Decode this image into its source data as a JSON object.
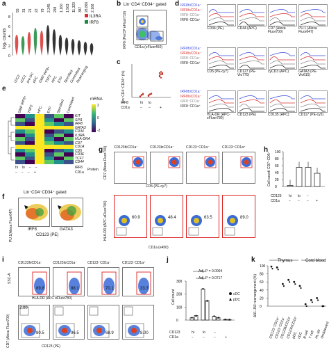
{
  "panels": {
    "a": {
      "label": "a",
      "ylabel": "log₂ counts",
      "counts": [
        "55",
        "31",
        "21",
        "22",
        "79",
        "2,345",
        "298",
        "1,160",
        "1,563",
        "11,323",
        "387",
        "28,866",
        "2,166"
      ],
      "legend": [
        "IL3RA",
        "IRF8"
      ],
      "legend_colors": [
        "#d83030",
        "#1b8a3a"
      ],
      "groups": [
        "cDC2",
        "cDC1",
        "pre-DC",
        "pDC",
        "GMP IRF8+",
        "TSP2",
        "HPC",
        "ETP",
        "Specified",
        "Committed",
        "Rearranging",
        "",
        ""
      ],
      "yticks": [
        "0",
        "2",
        "4",
        "6",
        "8"
      ]
    },
    "b": {
      "label": "b",
      "title": "Lin⁻CD4⁻CD34⁺ gated",
      "ylabel": "IRF8 (PerCP eFluor710)",
      "xlabel": "CD1a (eFluor450)"
    },
    "c": {
      "label": "c",
      "ylabel": "Lin⁻CD4⁻CD34⁺ (%)",
      "row1_label": "IRF8",
      "row2_label": "CD1a",
      "row1": [
        "hi",
        "lo",
        ""
      ],
      "row2": [
        "−",
        "−",
        "+"
      ]
    },
    "d": {
      "label": "d",
      "legend": [
        "IRF8hiCD1a⁻",
        "IRF8loCD1a⁻",
        "IRF8⁻CD1a⁻",
        "IRF8⁻CD1a⁺"
      ],
      "legend_colors": [
        "#3b4bd8",
        "#d83030",
        "#888888",
        "#222222"
      ],
      "row1": [
        "CD34 (PE)",
        "CD44 (APC)",
        "CD7 (Alexa Fluor700)",
        "PU.1 (Alexa Fluor647)"
      ],
      "row2": [
        "CD5 (PE-cy7)",
        "CD127 (PE-Vio770)",
        "cyCD3 (APC)",
        "GATA3 (PE-Vio615)"
      ],
      "row3": [
        "HLA-DR (APC-eFluor780)",
        "CD123 (PE)",
        "CD135 (APC)",
        "CD117 (PE-cy5)"
      ]
    },
    "e": {
      "label": "e",
      "columns": [
        "GMP IRF8+",
        "TSP2",
        "HPC",
        "ETP",
        "Specified",
        "Committed"
      ],
      "rows": [
        "KIT",
        "SPI1",
        "IRF8",
        "GATA3",
        "CD34",
        "IL3RA",
        "HLA-DRA",
        "CD7",
        "CD1A",
        "CD5",
        "CD3E",
        "TCF7",
        "CD44"
      ],
      "colorbar_title": "mRNA",
      "colorbar_ticks": [
        "2",
        "0",
        "-2"
      ],
      "irf8_label": "IRF8",
      "cd1a_label": "CD1a",
      "protein_label": "Protein",
      "irf8_vals": [
        "hi",
        "lo",
        "−",
        "−"
      ],
      "cd1a_vals": [
        "−",
        "−",
        "−",
        "+"
      ]
    },
    "f": {
      "label": "f",
      "title": "Lin⁻CD4⁻CD34⁺ gated",
      "ylabel": "PU.1(Alexa Fluor647)",
      "xlabels": [
        "IRF8",
        "GATA3"
      ],
      "xaxis": "CD123 (PE)"
    },
    "g": {
      "label": "g",
      "titles": [
        "CD123hiCD1a⁻",
        "CD123loCD1a⁻",
        "CD123⁻CD1a⁻",
        "CD123⁻CD1a⁺"
      ],
      "ylabel_top": "CD7 (Alexa Fluor700)",
      "xlabel_top": "CD5 (PE-cy7)",
      "ylabel_bottom": "HLA-DR (APC eFluor780)",
      "xlabel_bottom": "CD1a (e450)",
      "bottom_values": [
        "60.9",
        "48.4",
        "63.5",
        "89.0"
      ]
    },
    "h": {
      "label": "h",
      "ylabel": "Cell count/ CD7⁺CD5⁺",
      "yticks": [
        "0",
        "20",
        "40",
        "60",
        "80",
        "100"
      ],
      "row1_label": "CD123",
      "row2_label": "CD1a",
      "row1": [
        "hi",
        "lo",
        "−",
        ""
      ],
      "row2": [
        "−",
        "−",
        "−",
        "+"
      ]
    },
    "i": {
      "label": "i",
      "titles": [
        "CD123hiCD1a⁻",
        "CD123loCD1a⁻",
        "CD123⁻CD1a⁻",
        "CD123⁻CD1a⁺"
      ],
      "ylabel_top": "SSC-A",
      "xlabel_top": "HLA-DR (APC eFluor780)",
      "ylabel_bottom": "CD7 (Alexa Fluor700)",
      "xlabel_bottom": "CD123 (PE)",
      "top_values": [
        "89.8",
        "88.1",
        "70.1",
        "33.3"
      ],
      "bottom_values": [
        "80.5",
        "96.5",
        "68.9",
        "8.00"
      ],
      "bottom_left_values": [
        "2.00",
        "",
        "",
        ""
      ]
    },
    "j": {
      "label": "j",
      "ylabel": "Cell count",
      "yticks": [
        "0",
        "100",
        "200",
        "300"
      ],
      "adj1": "Adj. P = 0.0004",
      "adj2": "Adj. P = 0.0717",
      "legend": [
        "cDC",
        "pDC"
      ],
      "row1_label": "CD123",
      "row2_label": "CD1a",
      "row1": [
        "hi",
        "lo",
        "−",
        ""
      ],
      "row2": [
        "−",
        "−",
        "−",
        "+"
      ]
    },
    "k": {
      "label": "k",
      "ylabel": "Δδ1-Jδ3 rearrangement (%)",
      "yticks": [
        "0",
        "20",
        "40",
        "60",
        "80",
        "100"
      ],
      "group_thymus": "Thymus",
      "group_cord": "Cord blood",
      "categories": [
        "CD123⁻CD1a⁺",
        "CD123⁻CD1a⁻",
        "CD123loCD1a⁻",
        "CD123hiCD1a⁻",
        "pDC",
        "cDC",
        "B cell",
        "T cell",
        "HL-60",
        "Undetected"
      ]
    }
  },
  "chart_data": [
    {
      "type": "scatter",
      "panel": "c",
      "categories": [
        "IRF8hi CD1a−",
        "IRF8lo CD1a−",
        "IRF8− CD1a+"
      ],
      "series": [
        {
          "values": [
            [
              0.5,
              1.1,
              1.4,
              0.7,
              1.3,
              0.8,
              1.0,
              1.2
            ],
            [
              1.4,
              1.8,
              1.5,
              1.2,
              1.7,
              1.3,
              1.9,
              1.6
            ],
            [
              18,
              20,
              21,
              19,
              22,
              20,
              21,
              17
            ]
          ]
        }
      ]
    },
    {
      "type": "bar",
      "panel": "h",
      "categories": [
        "hi −",
        "lo −",
        "− −",
        "− +"
      ],
      "values": [
        3,
        55,
        55,
        38
      ],
      "ylim": [
        0,
        100
      ]
    },
    {
      "type": "bar",
      "panel": "j",
      "categories": [
        "hi −",
        "lo −",
        "− −",
        "− +"
      ],
      "series": [
        {
          "name": "cDC",
          "values": [
            18,
            240,
            30,
            5
          ]
        },
        {
          "name": "pDC",
          "values": [
            35,
            150,
            20,
            5
          ]
        }
      ],
      "ylim": [
        0,
        300
      ]
    },
    {
      "type": "scatter",
      "panel": "k",
      "categories": [
        "CD123⁻CD1a⁺",
        "CD123⁻CD1a⁻",
        "CD123loCD1a⁻",
        "CD123hiCD1a⁻",
        "pDC",
        "cDC",
        "B cell",
        "T cell",
        "HL-60",
        "Undetected"
      ],
      "series": [
        {
          "values": [
            98,
            96,
            55,
            65,
            60,
            50,
            5,
            15,
            20,
            0
          ]
        }
      ],
      "ylim": [
        0,
        100
      ]
    }
  ]
}
